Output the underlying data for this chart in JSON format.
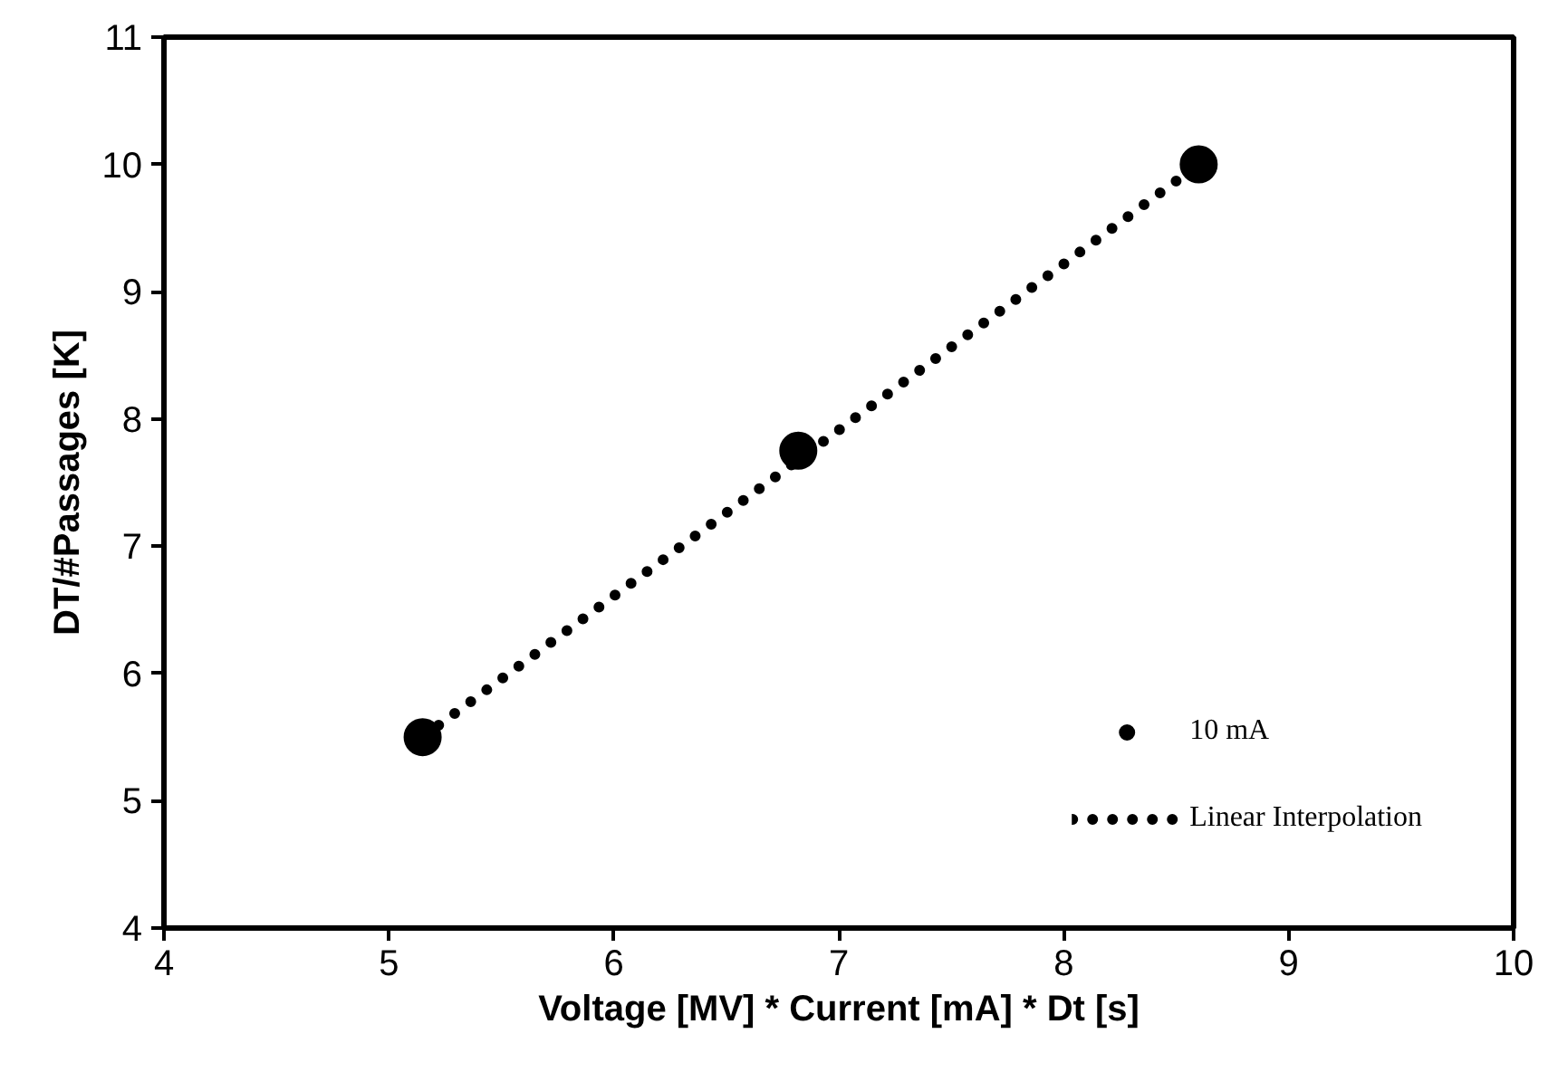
{
  "chart_data": {
    "type": "scatter",
    "xlabel": "Voltage [MV] * Current [mA] * Dt [s]",
    "ylabel": "DT/#Passages [K]",
    "series": [
      {
        "name": "10 mA",
        "color": "#000000",
        "marker": "circle",
        "x": [
          5.15,
          6.82,
          8.6
        ],
        "values": [
          5.5,
          7.75,
          10.0
        ]
      },
      {
        "name": "Linear Interpolation",
        "type": "line",
        "color": "#000000",
        "line_style": "dotted",
        "marker": "none",
        "x": [
          5.15,
          8.6
        ],
        "values": [
          5.5,
          10.0
        ]
      }
    ],
    "xlim": [
      4,
      10
    ],
    "ylim": [
      4,
      11
    ],
    "xticks": [
      4,
      5,
      6,
      7,
      8,
      9,
      10
    ],
    "yticks": [
      4,
      5,
      6,
      7,
      8,
      9,
      10,
      11
    ],
    "grid": false,
    "legend": "bottom right"
  }
}
